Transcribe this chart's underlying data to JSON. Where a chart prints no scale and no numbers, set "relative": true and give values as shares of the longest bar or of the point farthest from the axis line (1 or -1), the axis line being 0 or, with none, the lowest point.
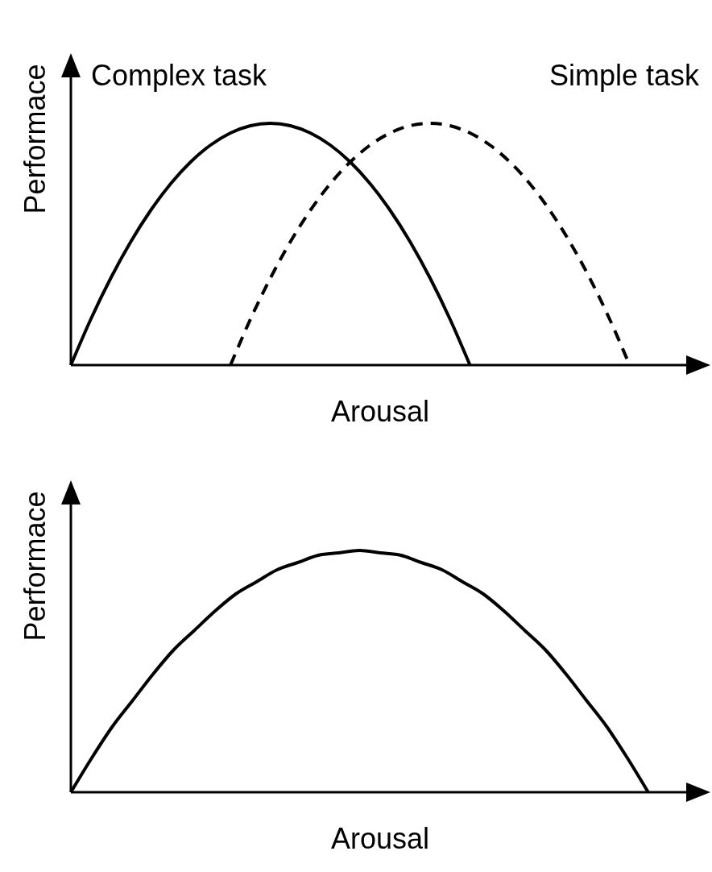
{
  "chart_data": [
    {
      "type": "line",
      "relative": true,
      "xlabel": "Arousal",
      "ylabel": "Performace",
      "legend": "top",
      "grid": false,
      "marker": "none",
      "categories": [
        null,
        null,
        null,
        null,
        null,
        null,
        null,
        null,
        null,
        null,
        null,
        null,
        null,
        null,
        null,
        null,
        null,
        null,
        null,
        null,
        null,
        null,
        null,
        null,
        null,
        null,
        null,
        null,
        null,
        null,
        null,
        null
      ],
      "series": [
        {
          "name": "Complex task",
          "color": "#000000",
          "line_style": "solid",
          "values": [
            0,
            0.19,
            0.36,
            0.51,
            0.64,
            0.75,
            0.84,
            0.91,
            0.96,
            0.99,
            1,
            0.99,
            0.96,
            0.91,
            0.84,
            0.75,
            0.64,
            0.51,
            0.36,
            0.19,
            0,
            null,
            null,
            null,
            null,
            null,
            null,
            null,
            null,
            null,
            null,
            null
          ]
        },
        {
          "name": "Simple task",
          "color": "#000000",
          "line_style": "dashed",
          "values": [
            null,
            null,
            null,
            null,
            null,
            null,
            null,
            null,
            0,
            0.19,
            0.36,
            0.51,
            0.64,
            0.75,
            0.84,
            0.91,
            0.96,
            0.99,
            1,
            0.99,
            0.96,
            0.91,
            0.84,
            0.75,
            0.64,
            0.51,
            0.36,
            0.19,
            0,
            null,
            null,
            null
          ]
        }
      ]
    },
    {
      "type": "line",
      "relative": true,
      "xlabel": "Arousal",
      "ylabel": "Performace",
      "legend": false,
      "grid": false,
      "marker": "none",
      "categories": [
        null,
        null,
        null,
        null,
        null,
        null,
        null,
        null,
        null,
        null,
        null,
        null,
        null,
        null,
        null,
        null,
        null,
        null,
        null,
        null,
        null,
        null,
        null,
        null,
        null,
        null,
        null,
        null,
        null,
        null,
        null
      ],
      "series": [
        {
          "color": "#000000",
          "line_style": "solid",
          "values": [
            0,
            0.14,
            0.27,
            0.38,
            0.49,
            0.59,
            0.67,
            0.75,
            0.82,
            0.87,
            0.92,
            0.95,
            0.98,
            0.99,
            1,
            0.99,
            0.98,
            0.95,
            0.92,
            0.87,
            0.82,
            0.75,
            0.67,
            0.59,
            0.49,
            0.38,
            0.27,
            0.14,
            0,
            null,
            null
          ]
        }
      ]
    }
  ]
}
